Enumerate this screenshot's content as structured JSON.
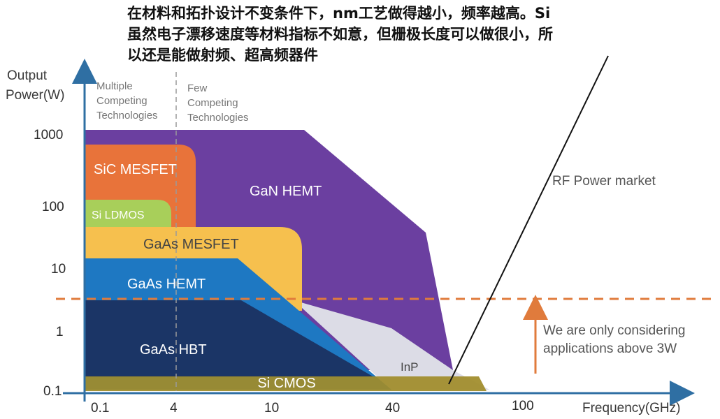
{
  "annotation": {
    "lines": [
      "在材料和拓扑设计不变条件下，nm工艺做得越小，频率越高。Si",
      "虽然电子漂移速度等材料指标不如意，但栅极长度可以做很小，所",
      "以还是能做射频、超高频器件"
    ]
  },
  "chart_data": {
    "type": "area",
    "title": "RF Power market",
    "ylabel": [
      "Output",
      "Power(W)"
    ],
    "xlabel": "Frequency(GHz)",
    "x_scale": "log",
    "y_scale": "log",
    "xlim": [
      0.1,
      200
    ],
    "ylim": [
      0.1,
      1000
    ],
    "x_ticks": [
      "0.1",
      "4",
      "10",
      "40",
      "100"
    ],
    "y_ticks": [
      "1000",
      "100",
      "10",
      "1",
      "0.1"
    ],
    "region_notes": {
      "left": [
        "Multiple",
        "Competing",
        "Technologies"
      ],
      "right": [
        "Few",
        "Competing",
        "Technologies"
      ]
    },
    "threshold": {
      "power_w": 3,
      "note": [
        "We are only considering",
        "applications above 3W"
      ]
    },
    "series": [
      {
        "name": "GaN HEMT",
        "color": "#6b3fa0",
        "max_power_w": 1000,
        "max_frequency_ghz": 70
      },
      {
        "name": "SiC MESFET",
        "color": "#e8733a",
        "max_power_w": 700,
        "max_frequency_ghz": 7
      },
      {
        "name": "Si LDMOS",
        "color": "#a8cf5a",
        "max_power_w": 100,
        "max_frequency_ghz": 4
      },
      {
        "name": "GaAs MESFET",
        "color": "#f6c04e",
        "max_power_w": 50,
        "max_frequency_ghz": 16
      },
      {
        "name": "GaAs HEMT",
        "color": "#1e78c2",
        "max_power_w": 15,
        "max_frequency_ghz": 45
      },
      {
        "name": "InP",
        "color": "#dcdce6",
        "max_power_w": 1,
        "max_frequency_ghz": 120
      },
      {
        "name": "GaAs HBT",
        "color": "#1b3566",
        "max_power_w": 3,
        "max_frequency_ghz": 40
      },
      {
        "name": "Si CMOS",
        "color": "#a08c2a",
        "max_power_w": 0.1,
        "max_frequency_ghz": 80
      }
    ],
    "colors": {
      "axis": "#2f6fa3",
      "threshold_line": "#e07b3c",
      "pointer_line": "#111111"
    }
  }
}
